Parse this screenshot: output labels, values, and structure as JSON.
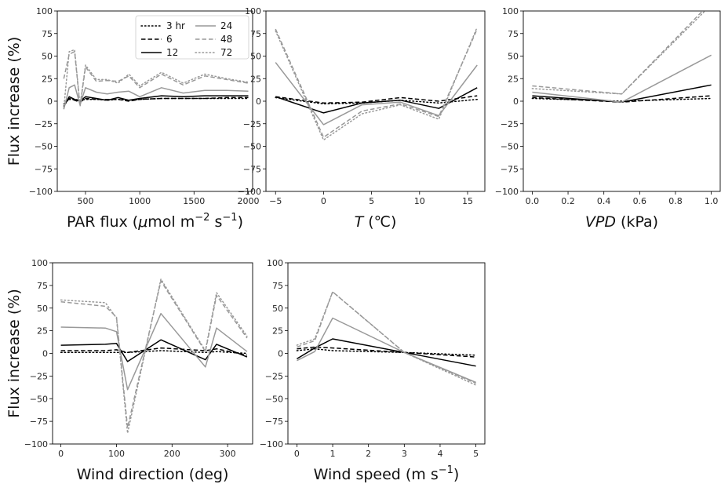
{
  "ylabel": "Flux increase (%)",
  "legend_entries": [
    {
      "name": "3 hr",
      "color": "#000000",
      "dash": "dotted"
    },
    {
      "name": "6",
      "color": "#000000",
      "dash": "dashed"
    },
    {
      "name": "12",
      "color": "#000000",
      "dash": "solid"
    },
    {
      "name": "24",
      "color": "#999999",
      "dash": "solid"
    },
    {
      "name": "48",
      "color": "#999999",
      "dash": "dashed"
    },
    {
      "name": "72",
      "color": "#999999",
      "dash": "dotted"
    }
  ],
  "chart_data": [
    {
      "type": "line",
      "xlabel_parts": {
        "main": "PAR flux (",
        "mu": "μ",
        "unit": "mol m",
        "exp1": "−2",
        "mid": " s",
        "exp2": "−1",
        "close": ")"
      },
      "xlim": [
        240,
        2040
      ],
      "ylim": [
        -100,
        100
      ],
      "xticks": [
        500,
        1000,
        1500,
        2000
      ],
      "xtick_labels": [
        "500",
        "1000",
        "1500",
        "2000"
      ],
      "yticks": [
        -100,
        -75,
        -50,
        -25,
        0,
        25,
        50,
        75,
        100
      ],
      "ytick_labels": [
        "−100",
        "−75",
        "−50",
        "−25",
        "0",
        "25",
        "50",
        "75",
        "100"
      ],
      "x": [
        300,
        350,
        400,
        450,
        500,
        600,
        700,
        800,
        900,
        1000,
        1200,
        1400,
        1600,
        1800,
        2000
      ],
      "series": [
        {
          "name": "3 hr",
          "values": [
            -3,
            2,
            2,
            1,
            2,
            2,
            1,
            2,
            1,
            2,
            3,
            3,
            3,
            3,
            3
          ]
        },
        {
          "name": "6",
          "values": [
            -5,
            3,
            1,
            -1,
            3,
            2,
            2,
            2,
            0,
            2,
            3,
            3,
            3,
            4,
            4
          ]
        },
        {
          "name": "12",
          "values": [
            -6,
            5,
            2,
            0,
            5,
            3,
            1,
            4,
            1,
            3,
            6,
            5,
            6,
            6,
            6
          ]
        },
        {
          "name": "24",
          "values": [
            -9,
            15,
            18,
            -4,
            15,
            10,
            8,
            10,
            11,
            5,
            15,
            9,
            12,
            12,
            11
          ]
        },
        {
          "name": "48",
          "values": [
            25,
            52,
            55,
            -6,
            38,
            22,
            23,
            22,
            28,
            15,
            30,
            18,
            28,
            24,
            20
          ]
        },
        {
          "name": "72",
          "values": [
            -8,
            55,
            57,
            -5,
            40,
            24,
            24,
            20,
            30,
            17,
            32,
            20,
            30,
            25,
            21
          ]
        }
      ]
    },
    {
      "type": "line",
      "xlabel_parts": {
        "var": "T",
        "rest": " (℃)"
      },
      "xlim": [
        -6.0,
        16.8
      ],
      "ylim": [
        -100,
        100
      ],
      "xticks": [
        -5,
        0,
        5,
        10,
        15
      ],
      "xtick_labels": [
        "−5",
        "0",
        "5",
        "10",
        "15"
      ],
      "yticks": [
        -100,
        -75,
        -50,
        -25,
        0,
        25,
        50,
        75,
        100
      ],
      "ytick_labels": [
        "−100",
        "−75",
        "−50",
        "−25",
        "0",
        "25",
        "50",
        "75",
        "100"
      ],
      "x": [
        -5,
        0,
        4,
        8,
        12,
        16
      ],
      "series": [
        {
          "name": "3 hr",
          "values": [
            4,
            -3,
            -2,
            1,
            -2,
            2
          ]
        },
        {
          "name": "6",
          "values": [
            5,
            -2,
            -1,
            4,
            0,
            6
          ]
        },
        {
          "name": "12",
          "values": [
            5,
            -13,
            -2,
            1,
            -8,
            15
          ]
        },
        {
          "name": "24",
          "values": [
            43,
            -26,
            -4,
            -1,
            -16,
            40
          ]
        },
        {
          "name": "48",
          "values": [
            80,
            -40,
            -11,
            -3,
            -17,
            80
          ]
        },
        {
          "name": "72",
          "values": [
            78,
            -43,
            -14,
            -4,
            -20,
            82
          ]
        }
      ]
    },
    {
      "type": "line",
      "xlabel_parts": {
        "var": "VPD",
        "rest": " (kPa)"
      },
      "xlim": [
        -0.05,
        1.05
      ],
      "ylim": [
        -100,
        100
      ],
      "xticks": [
        0.0,
        0.2,
        0.4,
        0.6,
        0.8,
        1.0
      ],
      "xtick_labels": [
        "0.0",
        "0.2",
        "0.4",
        "0.6",
        "0.8",
        "1.0"
      ],
      "yticks": [
        -100,
        -75,
        -50,
        -25,
        0,
        25,
        50,
        75,
        100
      ],
      "ytick_labels": [
        "−100",
        "−75",
        "−50",
        "−25",
        "0",
        "25",
        "50",
        "75",
        "100"
      ],
      "x": [
        0.0,
        0.5,
        1.0
      ],
      "series": [
        {
          "name": "3 hr",
          "values": [
            3,
            0,
            3
          ]
        },
        {
          "name": "6",
          "values": [
            4,
            -1,
            6
          ]
        },
        {
          "name": "12",
          "values": [
            6,
            -1,
            18
          ]
        },
        {
          "name": "24",
          "values": [
            10,
            -1,
            51
          ]
        },
        {
          "name": "48",
          "values": [
            17,
            8,
            110
          ]
        },
        {
          "name": "72",
          "values": [
            14,
            8,
            107
          ]
        }
      ]
    },
    {
      "type": "line",
      "xlabel_parts": {
        "main": "Wind direction (deg)"
      },
      "xlim": [
        -15,
        345
      ],
      "ylim": [
        -100,
        100
      ],
      "xticks": [
        0,
        100,
        200,
        300
      ],
      "xtick_labels": [
        "0",
        "100",
        "200",
        "300"
      ],
      "yticks": [
        -100,
        -75,
        -50,
        -25,
        0,
        25,
        50,
        75,
        100
      ],
      "ytick_labels": [
        "−100",
        "−75",
        "−50",
        "−25",
        "0",
        "25",
        "50",
        "75",
        "100"
      ],
      "x": [
        0,
        80,
        100,
        120,
        180,
        260,
        280,
        335
      ],
      "series": [
        {
          "name": "3 hr",
          "values": [
            1,
            1,
            1,
            1,
            3,
            1,
            2,
            0
          ]
        },
        {
          "name": "6",
          "values": [
            3,
            3,
            4,
            1,
            6,
            3,
            5,
            -2
          ]
        },
        {
          "name": "12",
          "values": [
            9,
            10,
            11,
            -9,
            15,
            -7,
            10,
            -4
          ]
        },
        {
          "name": "24",
          "values": [
            29,
            28,
            24,
            -40,
            44,
            -15,
            28,
            2
          ]
        },
        {
          "name": "48",
          "values": [
            57,
            52,
            40,
            -82,
            80,
            2,
            64,
            17
          ]
        },
        {
          "name": "72",
          "values": [
            59,
            56,
            39,
            -88,
            82,
            3,
            67,
            19
          ]
        }
      ]
    },
    {
      "type": "line",
      "xlabel_parts": {
        "main": "Wind speed (m s",
        "exp": "−1",
        "close": ")"
      },
      "xlim": [
        -0.25,
        5.25
      ],
      "ylim": [
        -100,
        100
      ],
      "xticks": [
        0,
        1,
        2,
        3,
        4,
        5
      ],
      "xtick_labels": [
        "0",
        "1",
        "2",
        "3",
        "4",
        "5"
      ],
      "yticks": [
        -100,
        -75,
        -50,
        -25,
        0,
        25,
        50,
        75,
        100
      ],
      "ytick_labels": [
        "−100",
        "−75",
        "−50",
        "−25",
        "0",
        "25",
        "50",
        "75",
        "100"
      ],
      "x": [
        0,
        0.5,
        1,
        3,
        5
      ],
      "series": [
        {
          "name": "3 hr",
          "values": [
            3,
            5,
            3,
            1,
            -2
          ]
        },
        {
          "name": "6",
          "values": [
            5,
            7,
            6,
            1,
            -4
          ]
        },
        {
          "name": "12",
          "values": [
            -6,
            6,
            16,
            1,
            -14
          ]
        },
        {
          "name": "24",
          "values": [
            -8,
            2,
            39,
            1,
            -32
          ]
        },
        {
          "name": "48",
          "values": [
            7,
            14,
            68,
            1,
            -33
          ]
        },
        {
          "name": "72",
          "values": [
            9,
            16,
            68,
            1,
            -35
          ]
        }
      ]
    }
  ]
}
